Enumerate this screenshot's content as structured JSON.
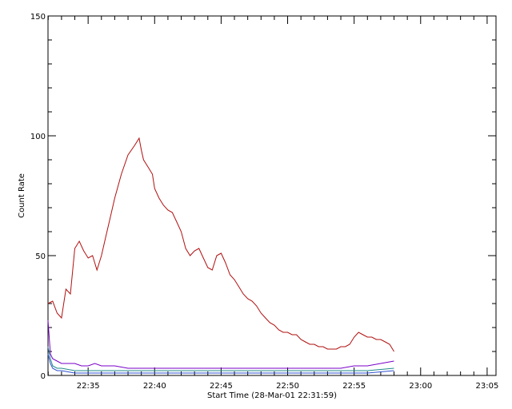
{
  "chart_data": {
    "type": "line",
    "title": "",
    "xlabel": "Start Time (28-Mar-01 22:31:59)",
    "ylabel": "Count Rate",
    "x_unit": "time HH:MM (28-Mar-01)",
    "xlim": [
      "22:31:59",
      "23:05:40"
    ],
    "ylim": [
      0,
      150
    ],
    "x_ticks": [
      "22:35",
      "22:40",
      "22:45",
      "22:50",
      "22:55",
      "23:00",
      "23:05"
    ],
    "y_ticks": [
      0,
      50,
      100,
      150
    ],
    "grid": false,
    "legend": "none",
    "series": [
      {
        "color": "#b01010",
        "x": [
          "22:31:59",
          "22:32:20",
          "22:32:40",
          "22:33:00",
          "22:33:20",
          "22:33:40",
          "22:34:00",
          "22:34:20",
          "22:34:40",
          "22:35:00",
          "22:35:20",
          "22:35:40",
          "22:36:00",
          "22:36:20",
          "22:36:40",
          "22:37:00",
          "22:37:30",
          "22:38:00",
          "22:38:30",
          "22:38:50",
          "22:39:00",
          "22:39:10",
          "22:39:30",
          "22:39:50",
          "22:40:00",
          "22:40:20",
          "22:40:40",
          "22:41:00",
          "22:41:20",
          "22:41:40",
          "22:42:00",
          "22:42:20",
          "22:42:40",
          "22:43:00",
          "22:43:20",
          "22:43:40",
          "22:44:00",
          "22:44:20",
          "22:44:40",
          "22:45:00",
          "22:45:20",
          "22:45:40",
          "22:46:00",
          "22:46:20",
          "22:46:40",
          "22:47:00",
          "22:47:20",
          "22:47:40",
          "22:48:00",
          "22:48:20",
          "22:48:40",
          "22:49:00",
          "22:49:20",
          "22:49:40",
          "22:50:00",
          "22:50:20",
          "22:50:40",
          "22:51:00",
          "22:51:20",
          "22:51:40",
          "22:52:00",
          "22:52:20",
          "22:52:40",
          "22:53:00",
          "22:53:20",
          "22:53:40",
          "22:54:00",
          "22:54:20",
          "22:54:40",
          "22:55:00",
          "22:55:20",
          "22:55:40",
          "22:56:00",
          "22:56:20",
          "22:56:40",
          "22:57:00",
          "22:57:20",
          "22:57:40",
          "22:58:00"
        ],
        "y": [
          30,
          31,
          26,
          24,
          36,
          34,
          53,
          56,
          52,
          49,
          50,
          44,
          50,
          58,
          66,
          74,
          84,
          92,
          96,
          99,
          94,
          90,
          87,
          84,
          78,
          74,
          71,
          69,
          68,
          64,
          60,
          53,
          50,
          52,
          53,
          49,
          45,
          44,
          50,
          51,
          47,
          42,
          40,
          37,
          34,
          32,
          31,
          29,
          26,
          24,
          22,
          21,
          19,
          18,
          18,
          17,
          17,
          15,
          14,
          13,
          13,
          12,
          12,
          11,
          11,
          11,
          12,
          12,
          13,
          16,
          18,
          17,
          16,
          16,
          15,
          15,
          14,
          13,
          10
        ]
      },
      {
        "color": "#7a00c8",
        "x": [
          "22:31:59",
          "22:32:10",
          "22:32:20",
          "22:32:40",
          "22:33:00",
          "22:33:30",
          "22:34:00",
          "22:34:30",
          "22:35:00",
          "22:35:30",
          "22:36:00",
          "22:37:00",
          "22:38:00",
          "22:39:00",
          "22:40:00",
          "22:41:00",
          "22:42:00",
          "22:43:00",
          "22:44:00",
          "22:45:00",
          "22:46:00",
          "22:47:00",
          "22:48:00",
          "22:49:00",
          "22:50:00",
          "22:51:00",
          "22:52:00",
          "22:53:00",
          "22:54:00",
          "22:55:00",
          "22:56:00",
          "22:57:00",
          "22:58:00"
        ],
        "y": [
          23,
          9,
          7,
          6,
          5,
          5,
          5,
          4,
          4,
          5,
          4,
          4,
          3,
          3,
          3,
          3,
          3,
          3,
          3,
          3,
          3,
          3,
          3,
          3,
          3,
          3,
          3,
          3,
          3,
          4,
          4,
          5,
          6
        ]
      },
      {
        "color": "#1f8a8a",
        "x": [
          "22:31:59",
          "22:32:10",
          "22:32:20",
          "22:32:40",
          "22:33:00",
          "22:34:00",
          "22:35:00",
          "22:36:00",
          "22:38:00",
          "22:40:00",
          "22:42:00",
          "22:44:00",
          "22:46:00",
          "22:48:00",
          "22:50:00",
          "22:52:00",
          "22:54:00",
          "22:56:00",
          "22:58:00"
        ],
        "y": [
          12,
          7,
          4,
          3,
          3,
          2,
          2,
          2,
          2,
          2,
          2,
          2,
          2,
          2,
          2,
          2,
          2,
          2,
          3
        ]
      },
      {
        "color": "#3050d0",
        "x": [
          "22:31:59",
          "22:32:10",
          "22:32:20",
          "22:32:40",
          "22:33:00",
          "22:34:00",
          "22:36:00",
          "22:40:00",
          "22:44:00",
          "22:48:00",
          "22:52:00",
          "22:56:00",
          "22:58:00"
        ],
        "y": [
          9,
          5,
          3,
          2,
          2,
          1,
          1,
          1,
          1,
          1,
          1,
          1,
          2
        ]
      }
    ]
  }
}
